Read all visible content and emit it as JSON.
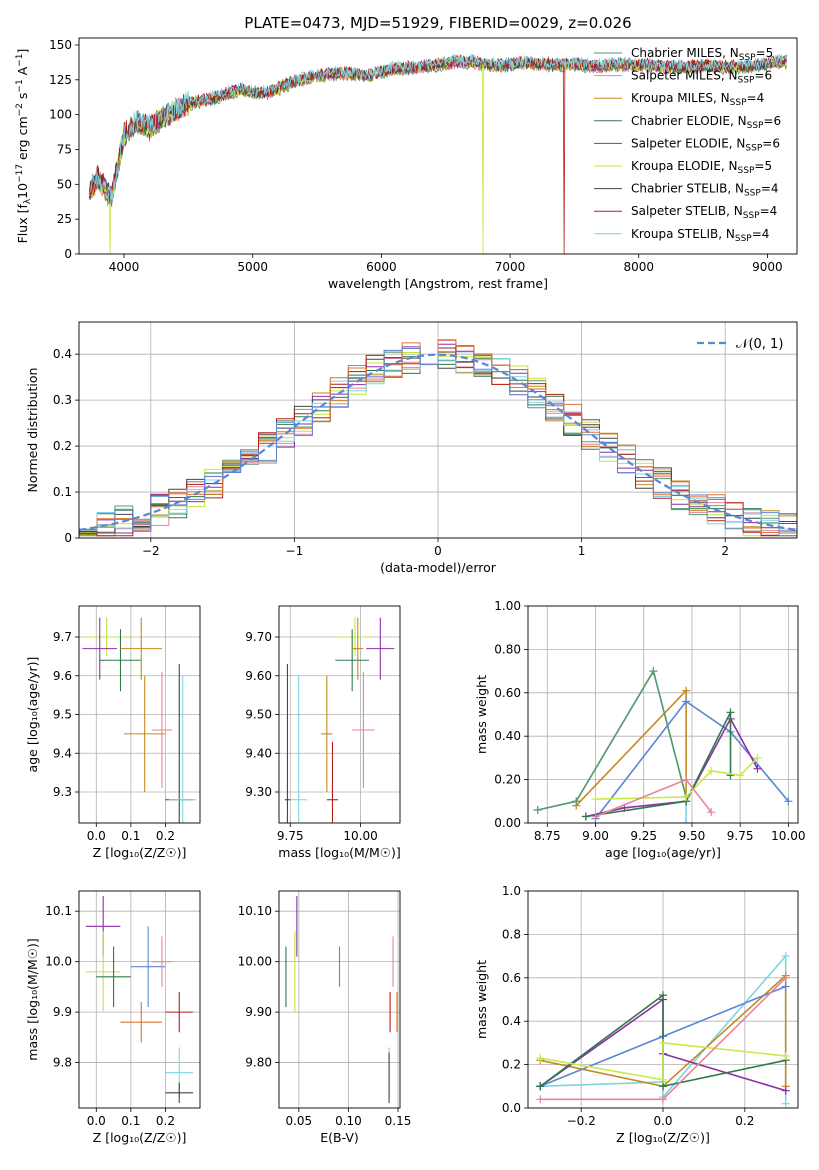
{
  "title": "PLATE=0473, MJD=51929, FIBERID=0029, z=0.026",
  "series": [
    {
      "name": "Chabrier MILES",
      "nssp": "5",
      "color": "#5b9a6d"
    },
    {
      "name": "Salpeter MILES",
      "nssp": "6",
      "color": "#e8849a"
    },
    {
      "name": "Kroupa MILES",
      "nssp": "4",
      "color": "#c48a1e"
    },
    {
      "name": "Chabrier ELODIE",
      "nssp": "6",
      "color": "#2e7a4a"
    },
    {
      "name": "Salpeter ELODIE",
      "nssp": "6",
      "color": "#8e2fa6"
    },
    {
      "name": "Kroupa ELODIE",
      "nssp": "5",
      "color": "#c6e63a"
    },
    {
      "name": "Chabrier STELIB",
      "nssp": "4",
      "color": "#444444"
    },
    {
      "name": "Salpeter STELIB",
      "nssp": "4",
      "color": "#b81d1d"
    },
    {
      "name": "Kroupa STELIB",
      "nssp": "4",
      "color": "#7fd3e6"
    }
  ],
  "extra_colors": {
    "orange": "#e07128",
    "blue": "#5b86d6",
    "yellow": "#c8ea4a",
    "darkgreen": "#3f7f4f"
  },
  "chart_data": [
    {
      "id": "spectrum",
      "type": "line",
      "xlabel": "wavelength [Angstrom, rest frame]",
      "ylabel_main": "Flux [f",
      "ylabel_tail": "erg cm",
      "xlim": [
        3650,
        9230
      ],
      "ylim": [
        0,
        155
      ],
      "xticks": [
        4000,
        5000,
        6000,
        7000,
        8000,
        9000
      ],
      "yticks": [
        0,
        25,
        50,
        75,
        100,
        125,
        150
      ],
      "x": [
        3730,
        3800,
        3900,
        4000,
        4100,
        4200,
        4300,
        4500,
        4700,
        4900,
        5100,
        5300,
        5500,
        5700,
        5900,
        6100,
        6300,
        6500,
        6700,
        6900,
        7100,
        7300,
        7500,
        7700,
        7900,
        8100,
        8300,
        8500,
        8700,
        8900,
        9100
      ],
      "y": [
        45,
        55,
        40,
        85,
        95,
        90,
        98,
        108,
        112,
        118,
        115,
        123,
        128,
        130,
        128,
        133,
        134,
        137,
        138,
        135,
        137,
        136,
        136,
        135,
        136,
        135,
        134,
        135,
        134,
        135,
        138
      ],
      "drops": [
        {
          "x": 3890,
          "series": "Kroupa ELODIE"
        },
        {
          "x": 6790,
          "series": "Kroupa ELODIE"
        },
        {
          "x": 7420,
          "series": "Salpeter STELIB"
        }
      ]
    },
    {
      "id": "residual_hist",
      "type": "histogram",
      "xlabel": "(data-model)/error",
      "ylabel": "Normed distribution",
      "xlim": [
        -2.5,
        2.5
      ],
      "ylim": [
        0,
        0.47
      ],
      "xticks": [
        -2,
        -1,
        0,
        1,
        2
      ],
      "yticks": [
        0.0,
        0.1,
        0.2,
        0.3,
        0.4
      ],
      "bins": 40,
      "reference_label": "𝒩(0, 1)",
      "reference_curve": "standard normal pdf"
    },
    {
      "id": "age_vs_Z",
      "type": "scatter",
      "xlabel": "Z [log₁₀(Z/Z☉)]",
      "ylabel": "age  [log₁₀(age/yr)]",
      "xlim": [
        -0.05,
        0.3
      ],
      "ylim": [
        9.22,
        9.78
      ],
      "xticks": [
        0.0,
        0.1,
        0.2
      ],
      "yticks": [
        9.3,
        9.4,
        9.5,
        9.6,
        9.7
      ],
      "points": [
        {
          "s": "Kroupa ELODIE",
          "x": 0.03,
          "y": 9.7,
          "ex": 0.07,
          "ey": 0.05
        },
        {
          "s": "Chabrier ELODIE",
          "x": 0.07,
          "y": 9.64,
          "ex": 0.06,
          "ey": 0.08
        },
        {
          "s": "Salpeter ELODIE",
          "x": 0.01,
          "y": 9.67,
          "ex": 0.05,
          "ey": 0.08
        },
        {
          "s": "Kroupa MILES",
          "x": 0.13,
          "y": 9.67,
          "ex": 0.06,
          "ey": 0.08
        },
        {
          "s": "Salpeter MILES",
          "x": 0.19,
          "y": 9.46,
          "ex": 0.03,
          "ey": 0.15
        },
        {
          "s": "Kroupa MILES",
          "x": 0.14,
          "y": 9.45,
          "ex": 0.06,
          "ey": 0.15
        },
        {
          "s": "Chabrier STELIB",
          "x": 0.24,
          "y": 9.28,
          "ex": 0.04,
          "ey": 0.35
        },
        {
          "s": "Kroupa STELIB",
          "x": 0.25,
          "y": 9.28,
          "ex": 0.04,
          "ey": 0.32
        }
      ]
    },
    {
      "id": "age_vs_mass",
      "type": "scatter",
      "xlabel": "mass [log₁₀(M/M☉)]",
      "ylabel": "",
      "xlim": [
        9.71,
        10.14
      ],
      "ylim": [
        9.22,
        9.78
      ],
      "xticks": [
        9.75,
        10.0
      ],
      "yticks": [
        9.3,
        9.4,
        9.5,
        9.6,
        9.7
      ],
      "points": [
        {
          "s": "Kroupa ELODIE",
          "x": 9.98,
          "y": 9.7,
          "ex": 0.06,
          "ey": 0.05
        },
        {
          "s": "Chabrier ELODIE",
          "x": 9.97,
          "y": 9.64,
          "ex": 0.06,
          "ey": 0.08
        },
        {
          "s": "Salpeter ELODIE",
          "x": 10.07,
          "y": 9.67,
          "ex": 0.05,
          "ey": 0.08
        },
        {
          "s": "Kroupa MILES",
          "x": 9.99,
          "y": 9.67,
          "ex": 0.02,
          "ey": 0.08
        },
        {
          "s": "Salpeter MILES",
          "x": 10.01,
          "y": 9.46,
          "ex": 0.04,
          "ey": 0.15
        },
        {
          "s": "Kroupa MILES",
          "x": 9.88,
          "y": 9.45,
          "ex": 0.02,
          "ey": 0.15
        },
        {
          "s": "Salpeter STELIB",
          "x": 9.9,
          "y": 9.28,
          "ex": 0.02,
          "ey": 0.15
        },
        {
          "s": "Chabrier STELIB",
          "x": 9.74,
          "y": 9.28,
          "ex": 0.01,
          "ey": 0.35
        },
        {
          "s": "Kroupa STELIB",
          "x": 9.78,
          "y": 9.28,
          "ex": 0.03,
          "ey": 0.32
        }
      ]
    },
    {
      "id": "mass_weight_vs_age",
      "type": "line",
      "xlabel": "age  [log₁₀(age/yr)]",
      "ylabel": "mass weight",
      "xlim": [
        8.65,
        10.05
      ],
      "ylim": [
        0,
        1.0
      ],
      "xticks": [
        8.75,
        9.0,
        9.25,
        9.5,
        9.75,
        10.0
      ],
      "yticks": [
        0.0,
        0.2,
        0.4,
        0.6,
        0.8,
        1.0
      ],
      "series": [
        {
          "s": "Kroupa STELIB",
          "x": [
            8.7,
            8.9,
            9.3,
            9.47,
            9.47
          ],
          "y": [
            0.06,
            0.1,
            0.7,
            0.12,
            0.0
          ]
        },
        {
          "s": "Kroupa MILES",
          "x": [
            8.9,
            9.47,
            9.47
          ],
          "y": [
            0.08,
            0.61,
            0.12
          ]
        },
        {
          "s": "Chabrier MILES",
          "x": [
            8.7,
            8.9,
            9.3,
            9.47
          ],
          "y": [
            0.06,
            0.1,
            0.7,
            0.12
          ]
        },
        {
          "s": "blue",
          "x": [
            9.0,
            9.47,
            9.7,
            10.0
          ],
          "y": [
            0.02,
            0.56,
            0.42,
            0.1
          ]
        },
        {
          "s": "Salpeter ELODIE",
          "x": [
            8.95,
            9.15,
            9.47,
            9.7,
            9.84
          ],
          "y": [
            0.03,
            0.07,
            0.1,
            0.48,
            0.25
          ]
        },
        {
          "s": "Chabrier ELODIE",
          "x": [
            8.95,
            9.47,
            9.7,
            9.7
          ],
          "y": [
            0.03,
            0.1,
            0.51,
            0.22
          ]
        },
        {
          "s": "yellow",
          "x": [
            9.0,
            9.47,
            9.6,
            9.75,
            9.84
          ],
          "y": [
            0.11,
            0.12,
            0.24,
            0.22,
            0.3
          ]
        },
        {
          "s": "Salpeter MILES",
          "x": [
            9.0,
            9.47,
            9.6
          ],
          "y": [
            0.03,
            0.2,
            0.05
          ]
        }
      ]
    },
    {
      "id": "mass_vs_Z",
      "type": "scatter",
      "xlabel": "Z [log₁₀(Z/Z☉)]",
      "ylabel": "mass [log₁₀(M/M☉)]",
      "xlim": [
        -0.05,
        0.3
      ],
      "ylim": [
        9.71,
        10.14
      ],
      "xticks": [
        0.0,
        0.1,
        0.2
      ],
      "yticks": [
        9.8,
        9.9,
        10.0,
        10.1
      ],
      "points": [
        {
          "s": "Salpeter ELODIE",
          "x": 0.02,
          "y": 10.07,
          "ex": 0.05,
          "ey": 0.06
        },
        {
          "s": "Kroupa ELODIE",
          "x": 0.02,
          "y": 9.98,
          "ex": 0.05,
          "ey": 0.08
        },
        {
          "s": "Chabrier ELODIE",
          "x": 0.05,
          "y": 9.97,
          "ex": 0.05,
          "ey": 0.06
        },
        {
          "s": "blue",
          "x": 0.15,
          "y": 9.99,
          "ex": 0.05,
          "ey": 0.08
        },
        {
          "s": "Salpeter MILES",
          "x": 0.19,
          "y": 10.0,
          "ex": 0.03,
          "ey": 0.05
        },
        {
          "s": "orange",
          "x": 0.13,
          "y": 9.88,
          "ex": 0.06,
          "ey": 0.04
        },
        {
          "s": "Salpeter STELIB",
          "x": 0.24,
          "y": 9.9,
          "ex": 0.04,
          "ey": 0.04
        },
        {
          "s": "Kroupa STELIB",
          "x": 0.24,
          "y": 9.78,
          "ex": 0.04,
          "ey": 0.05
        },
        {
          "s": "Chabrier STELIB",
          "x": 0.24,
          "y": 9.74,
          "ex": 0.04,
          "ey": 0.02
        }
      ]
    },
    {
      "id": "mass_vs_EBV",
      "type": "scatter",
      "xlabel": "E(B-V)",
      "ylabel": "",
      "xlim": [
        0.03,
        0.152
      ],
      "ylim": [
        9.71,
        10.14
      ],
      "xticks": [
        0.05,
        0.1,
        0.15
      ],
      "yticks": [
        9.8,
        9.9,
        10.0,
        10.1
      ],
      "points": [
        {
          "s": "Chabrier ELODIE",
          "x": 0.037,
          "y": 9.97,
          "ex": 0,
          "ey": 0.06
        },
        {
          "s": "Kroupa ELODIE",
          "x": 0.046,
          "y": 9.98,
          "ex": 0,
          "ey": 0.08
        },
        {
          "s": "Salpeter ELODIE",
          "x": 0.048,
          "y": 10.07,
          "ex": 0,
          "ey": 0.06
        },
        {
          "s": "blue",
          "x": 0.091,
          "y": 9.99,
          "ex": 0,
          "ey": 0.04
        },
        {
          "s": "Salpeter MILES",
          "x": 0.145,
          "y": 10.0,
          "ex": 0,
          "ey": 0.05
        },
        {
          "s": "Salpeter STELIB",
          "x": 0.142,
          "y": 9.9,
          "ex": 0,
          "ey": 0.04
        },
        {
          "s": "orange",
          "x": 0.149,
          "y": 9.9,
          "ex": 0,
          "ey": 0.04
        },
        {
          "s": "Kroupa STELIB",
          "x": 0.141,
          "y": 9.78,
          "ex": 0,
          "ey": 0.05
        },
        {
          "s": "Chabrier STELIB",
          "x": 0.141,
          "y": 9.77,
          "ex": 0,
          "ey": 0.05
        }
      ]
    },
    {
      "id": "mass_weight_vs_Z",
      "type": "line",
      "xlabel": "Z [log₁₀(Z/Z☉)]",
      "ylabel": "mass weight",
      "xlim": [
        -0.33,
        0.33
      ],
      "ylim": [
        0,
        1.0
      ],
      "xticks": [
        -0.2,
        0.0,
        0.2
      ],
      "yticks": [
        0.0,
        0.2,
        0.4,
        0.6,
        0.8,
        1.0
      ],
      "series": [
        {
          "s": "Kroupa STELIB",
          "x": [
            -0.3,
            0.0,
            0.0,
            0.3,
            0.3
          ],
          "y": [
            0.1,
            0.12,
            0.05,
            0.7,
            0.02
          ]
        },
        {
          "s": "Kroupa MILES",
          "x": [
            -0.3,
            0.0,
            0.3,
            0.3
          ],
          "y": [
            0.22,
            0.1,
            0.61,
            0.1
          ]
        },
        {
          "s": "blue",
          "x": [
            -0.3,
            0.0,
            0.3
          ],
          "y": [
            0.1,
            0.33,
            0.56
          ]
        },
        {
          "s": "Salpeter ELODIE",
          "x": [
            -0.3,
            0.0,
            0.0,
            0.3
          ],
          "y": [
            0.1,
            0.5,
            0.25,
            0.08
          ]
        },
        {
          "s": "Chabrier ELODIE",
          "x": [
            -0.3,
            0.0,
            0.0,
            0.3
          ],
          "y": [
            0.1,
            0.52,
            0.1,
            0.22
          ]
        },
        {
          "s": "yellow",
          "x": [
            -0.3,
            0.0,
            0.0,
            0.3
          ],
          "y": [
            0.23,
            0.13,
            0.3,
            0.24
          ]
        },
        {
          "s": "Salpeter MILES",
          "x": [
            -0.3,
            0.0,
            0.3
          ],
          "y": [
            0.04,
            0.04,
            0.6
          ]
        }
      ]
    }
  ]
}
